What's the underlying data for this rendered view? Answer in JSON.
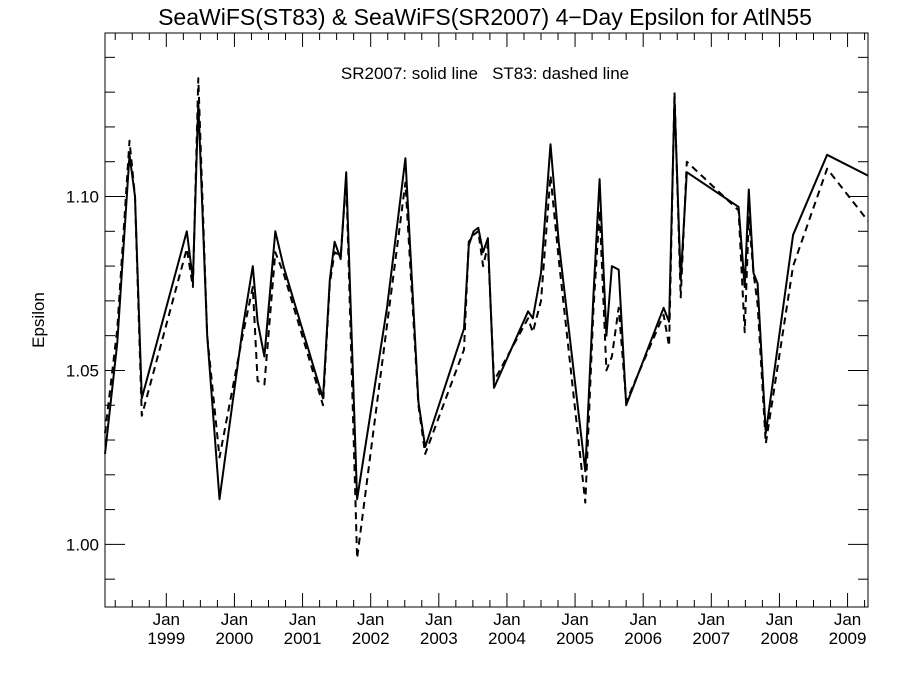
{
  "chart_data": {
    "type": "line",
    "title": "SeaWiFS(ST83) & SeaWiFS(SR2007) 4−Day Epsilon for AtlN55",
    "annotation": "SR2007: solid line   ST83: dashed line",
    "ylabel": "Epsilon",
    "xlabel": "",
    "x_unit": "decimal year",
    "xlim": [
      1998.1,
      2009.3
    ],
    "ylim": [
      0.982,
      1.147
    ],
    "grid": false,
    "x_ticks": [
      {
        "x": 1999.0,
        "month": "Jan",
        "year": "1999"
      },
      {
        "x": 2000.0,
        "month": "Jan",
        "year": "2000"
      },
      {
        "x": 2001.0,
        "month": "Jan",
        "year": "2001"
      },
      {
        "x": 2002.0,
        "month": "Jan",
        "year": "2002"
      },
      {
        "x": 2003.0,
        "month": "Jan",
        "year": "2003"
      },
      {
        "x": 2004.0,
        "month": "Jan",
        "year": "2004"
      },
      {
        "x": 2005.0,
        "month": "Jan",
        "year": "2005"
      },
      {
        "x": 2006.0,
        "month": "Jan",
        "year": "2006"
      },
      {
        "x": 2007.0,
        "month": "Jan",
        "year": "2007"
      },
      {
        "x": 2008.0,
        "month": "Jan",
        "year": "2008"
      },
      {
        "x": 2009.0,
        "month": "Jan",
        "year": "2009"
      }
    ],
    "y_ticks": [
      {
        "y": 1.0,
        "label": "1.00"
      },
      {
        "y": 1.05,
        "label": "1.05"
      },
      {
        "y": 1.1,
        "label": "1.10"
      }
    ],
    "y_minor_step": 0.01,
    "x_minor_months": 3,
    "series": [
      {
        "name": "SR2007",
        "style": "solid",
        "points": [
          [
            1998.1,
            1.026
          ],
          [
            1998.28,
            1.058
          ],
          [
            1998.46,
            1.112
          ],
          [
            1998.54,
            1.1
          ],
          [
            1998.64,
            1.042
          ],
          [
            1999.3,
            1.09
          ],
          [
            1999.39,
            1.076
          ],
          [
            1999.47,
            1.127
          ],
          [
            1999.6,
            1.06
          ],
          [
            1999.78,
            1.013
          ],
          [
            2000.12,
            1.062
          ],
          [
            2000.27,
            1.08
          ],
          [
            2000.34,
            1.064
          ],
          [
            2000.44,
            1.054
          ],
          [
            2000.6,
            1.09
          ],
          [
            2000.72,
            1.08
          ],
          [
            2001.3,
            1.042
          ],
          [
            2001.4,
            1.076
          ],
          [
            2001.47,
            1.087
          ],
          [
            2001.56,
            1.082
          ],
          [
            2001.64,
            1.107
          ],
          [
            2001.8,
            1.013
          ],
          [
            2002.24,
            1.068
          ],
          [
            2002.51,
            1.111
          ],
          [
            2002.7,
            1.041
          ],
          [
            2002.8,
            1.028
          ],
          [
            2003.37,
            1.062
          ],
          [
            2003.44,
            1.086
          ],
          [
            2003.51,
            1.09
          ],
          [
            2003.58,
            1.091
          ],
          [
            2003.65,
            1.084
          ],
          [
            2003.72,
            1.088
          ],
          [
            2003.81,
            1.045
          ],
          [
            2004.31,
            1.067
          ],
          [
            2004.38,
            1.065
          ],
          [
            2004.5,
            1.078
          ],
          [
            2004.64,
            1.115
          ],
          [
            2004.76,
            1.087
          ],
          [
            2005.15,
            1.021
          ],
          [
            2005.27,
            1.072
          ],
          [
            2005.36,
            1.105
          ],
          [
            2005.46,
            1.06
          ],
          [
            2005.54,
            1.08
          ],
          [
            2005.64,
            1.079
          ],
          [
            2005.75,
            1.04
          ],
          [
            2006.3,
            1.068
          ],
          [
            2006.38,
            1.064
          ],
          [
            2006.46,
            1.128
          ],
          [
            2006.55,
            1.076
          ],
          [
            2006.64,
            1.107
          ],
          [
            2007.4,
            1.097
          ],
          [
            2007.49,
            1.074
          ],
          [
            2007.55,
            1.102
          ],
          [
            2007.62,
            1.078
          ],
          [
            2007.68,
            1.075
          ],
          [
            2007.8,
            1.032
          ],
          [
            2008.2,
            1.089
          ],
          [
            2008.7,
            1.112
          ],
          [
            2009.3,
            1.106
          ]
        ]
      },
      {
        "name": "ST83",
        "style": "dashed",
        "points": [
          [
            1998.1,
            1.032
          ],
          [
            1998.28,
            1.062
          ],
          [
            1998.46,
            1.116
          ],
          [
            1998.54,
            1.1
          ],
          [
            1998.64,
            1.037
          ],
          [
            1999.3,
            1.085
          ],
          [
            1999.39,
            1.074
          ],
          [
            1999.47,
            1.134
          ],
          [
            1999.6,
            1.06
          ],
          [
            1999.78,
            1.025
          ],
          [
            2000.12,
            1.06
          ],
          [
            2000.27,
            1.074
          ],
          [
            2000.34,
            1.047
          ],
          [
            2000.44,
            1.046
          ],
          [
            2000.6,
            1.084
          ],
          [
            2000.72,
            1.078
          ],
          [
            2001.3,
            1.04
          ],
          [
            2001.4,
            1.075
          ],
          [
            2001.47,
            1.084
          ],
          [
            2001.56,
            1.083
          ],
          [
            2001.64,
            1.105
          ],
          [
            2001.8,
            0.996
          ],
          [
            2002.24,
            1.063
          ],
          [
            2002.51,
            1.104
          ],
          [
            2002.7,
            1.04
          ],
          [
            2002.8,
            1.026
          ],
          [
            2003.37,
            1.056
          ],
          [
            2003.44,
            1.087
          ],
          [
            2003.51,
            1.089
          ],
          [
            2003.58,
            1.09
          ],
          [
            2003.65,
            1.08
          ],
          [
            2003.72,
            1.086
          ],
          [
            2003.81,
            1.047
          ],
          [
            2004.31,
            1.065
          ],
          [
            2004.38,
            1.061
          ],
          [
            2004.5,
            1.07
          ],
          [
            2004.64,
            1.106
          ],
          [
            2004.76,
            1.082
          ],
          [
            2005.15,
            1.012
          ],
          [
            2005.27,
            1.068
          ],
          [
            2005.36,
            1.096
          ],
          [
            2005.46,
            1.05
          ],
          [
            2005.54,
            1.054
          ],
          [
            2005.64,
            1.068
          ],
          [
            2005.75,
            1.041
          ],
          [
            2006.3,
            1.066
          ],
          [
            2006.38,
            1.057
          ],
          [
            2006.46,
            1.13
          ],
          [
            2006.55,
            1.071
          ],
          [
            2006.64,
            1.11
          ],
          [
            2007.4,
            1.096
          ],
          [
            2007.49,
            1.061
          ],
          [
            2007.55,
            1.094
          ],
          [
            2007.62,
            1.078
          ],
          [
            2007.68,
            1.069
          ],
          [
            2007.8,
            1.029
          ],
          [
            2008.2,
            1.08
          ],
          [
            2008.7,
            1.108
          ],
          [
            2009.3,
            1.093
          ]
        ]
      }
    ]
  }
}
